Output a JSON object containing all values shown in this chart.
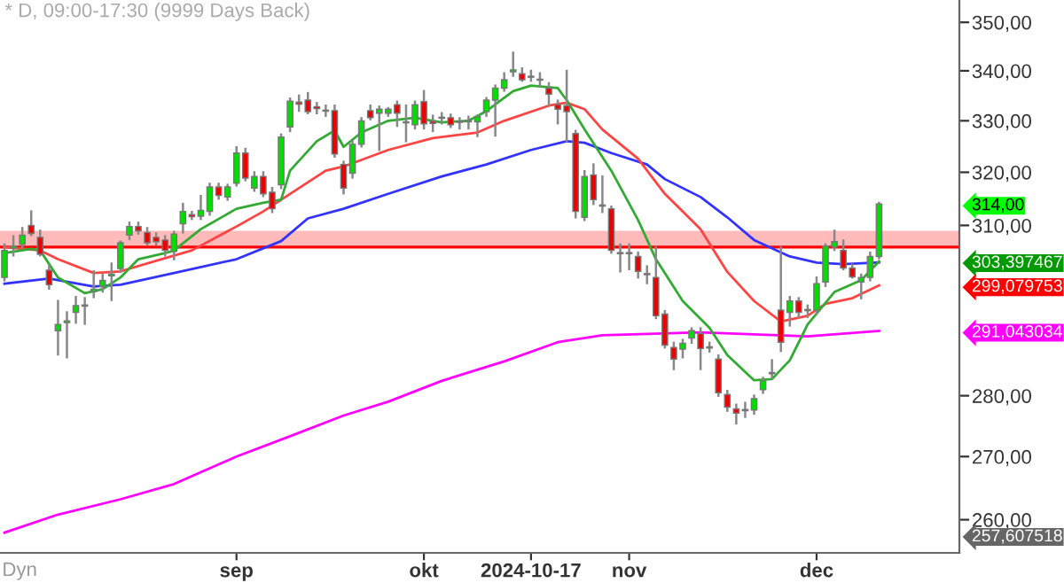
{
  "chart_data": {
    "type": "candlestick",
    "title": "* D, 09:00-17:30 (9999 Days Back)",
    "categories": [
      null,
      null,
      null,
      null,
      null,
      null,
      null,
      null,
      null,
      null,
      null,
      null,
      null,
      null,
      null,
      null,
      null,
      null,
      null,
      null,
      null,
      null,
      null,
      null,
      null,
      null,
      "sep",
      null,
      null,
      null,
      null,
      null,
      null,
      null,
      null,
      null,
      null,
      null,
      null,
      null,
      null,
      null,
      null,
      null,
      null,
      null,
      null,
      "okt",
      null,
      null,
      null,
      null,
      null,
      null,
      null,
      null,
      null,
      null,
      null,
      "2024-10-17",
      null,
      null,
      null,
      null,
      null,
      null,
      null,
      null,
      null,
      null,
      "nov",
      null,
      null,
      null,
      null,
      null,
      null,
      null,
      null,
      null,
      null,
      null,
      null,
      null,
      null,
      null,
      null,
      null,
      null,
      null,
      null,
      "dec",
      null,
      null,
      null,
      null,
      null,
      null,
      null
    ],
    "ohlc": [
      [
        300.5,
        306.5,
        300,
        305.4
      ],
      [
        305.8,
        308,
        304.5,
        306.2
      ],
      [
        306.5,
        309.5,
        306,
        308.2
      ],
      [
        310,
        312.6,
        308.2,
        308.5
      ],
      [
        307.8,
        309,
        304.5,
        304.7
      ],
      [
        301.8,
        302.5,
        298.5,
        299.2
      ],
      [
        291.1,
        296.3,
        287,
        292.2
      ],
      [
        292.5,
        294.3,
        286.5,
        292.8
      ],
      [
        294.3,
        297,
        292.5,
        295.5
      ],
      [
        295.4,
        296.8,
        292.3,
        295.6
      ],
      [
        298,
        301.6,
        297,
        298.4
      ],
      [
        298.9,
        301,
        298,
        300
      ],
      [
        300.8,
        303,
        296.5,
        301.1
      ],
      [
        302.1,
        307,
        301.5,
        306.8
      ],
      [
        308.2,
        310.5,
        307.5,
        309.8
      ],
      [
        309.8,
        310.5,
        308.5,
        309
      ],
      [
        308.7,
        309.5,
        306.5,
        306.8
      ],
      [
        307.8,
        308.5,
        306.5,
        307
      ],
      [
        307.3,
        308,
        304.5,
        305.4
      ],
      [
        305.2,
        308.8,
        303.8,
        308.4
      ],
      [
        310.3,
        314,
        308.7,
        312.6
      ],
      [
        312,
        312.5,
        311.2,
        311.6
      ],
      [
        311.7,
        315.5,
        311.2,
        312.8
      ],
      [
        312.6,
        317.8,
        312,
        317.2
      ],
      [
        317.2,
        317.8,
        315,
        315.6
      ],
      [
        315.3,
        317.6,
        314.8,
        317.2
      ],
      [
        317.9,
        324.8,
        317.5,
        323.7
      ],
      [
        323.7,
        324.5,
        318.5,
        318.9
      ],
      [
        317,
        320,
        316.5,
        319.2
      ],
      [
        319.2,
        320,
        315.5,
        315.9
      ],
      [
        316.2,
        317,
        312.5,
        313.1
      ],
      [
        317.6,
        327.3,
        317,
        326.8
      ],
      [
        328.8,
        334.4,
        328,
        333.9
      ],
      [
        333.7,
        335,
        332,
        333.3
      ],
      [
        334.1,
        335.5,
        331.5,
        331.8
      ],
      [
        332.8,
        333.5,
        331.5,
        332.4
      ],
      [
        332.1,
        333,
        331,
        331.9
      ],
      [
        332,
        333,
        323,
        323.5
      ],
      [
        321.5,
        322,
        316,
        317
      ],
      [
        319.8,
        326,
        319,
        325.4
      ],
      [
        325.4,
        330.5,
        325,
        330
      ],
      [
        332,
        333,
        330.3,
        330.6
      ],
      [
        331.5,
        332.8,
        324.3,
        332.3
      ],
      [
        331.5,
        332.5,
        331,
        332.3
      ],
      [
        333.2,
        333.8,
        329,
        331.5
      ],
      [
        329.8,
        333,
        326,
        329.6
      ],
      [
        329.2,
        333.8,
        328.5,
        333.2
      ],
      [
        333.8,
        335.9,
        328.5,
        329.4
      ],
      [
        329.9,
        331,
        328,
        329.5
      ],
      [
        330.5,
        331.5,
        329.5,
        330.7
      ],
      [
        330.6,
        331.2,
        328.8,
        329.2
      ],
      [
        329.9,
        330.5,
        328.5,
        329.7
      ],
      [
        329.8,
        330.8,
        328.5,
        330.1
      ],
      [
        329.8,
        331,
        327,
        330.8
      ],
      [
        331.8,
        334.5,
        331,
        334.1
      ],
      [
        334.1,
        337,
        327.1,
        336.5
      ],
      [
        336.5,
        339.5,
        336,
        338.2
      ],
      [
        339.8,
        343.7,
        339,
        340.2
      ],
      [
        339.4,
        340.5,
        338,
        338.2
      ],
      [
        338.9,
        340,
        338,
        338.7
      ],
      [
        338.3,
        339.5,
        337,
        338.1
      ],
      [
        336.5,
        337.5,
        333,
        335.3
      ],
      [
        333.2,
        334,
        329.5,
        332.3
      ],
      [
        333,
        340,
        326,
        331.8
      ],
      [
        327.5,
        328,
        311.5,
        312.6
      ],
      [
        311.5,
        320.2,
        311,
        319.2
      ],
      [
        319.5,
        321.5,
        314,
        314.8
      ],
      [
        313.6,
        319.2,
        312.5,
        313.8
      ],
      [
        313.1,
        313.5,
        305,
        305.4
      ],
      [
        304.8,
        306.5,
        301.6,
        305
      ],
      [
        304.8,
        306.5,
        302,
        305
      ],
      [
        304.3,
        305,
        300.5,
        301.6
      ],
      [
        301.2,
        302.5,
        299.5,
        301
      ],
      [
        300.5,
        306,
        293.3,
        293.7
      ],
      [
        294,
        294.5,
        288.2,
        288.6
      ],
      [
        288.2,
        289,
        284.5,
        286.2
      ],
      [
        287.9,
        289.5,
        286.5,
        288.9
      ],
      [
        289.8,
        291.5,
        289,
        291.1
      ],
      [
        290.6,
        291.5,
        284.5,
        288
      ],
      [
        288.3,
        289,
        287.5,
        288.1
      ],
      [
        286.2,
        286.8,
        280,
        280.5
      ],
      [
        280.2,
        280.8,
        277.5,
        278.1
      ],
      [
        277.8,
        278.5,
        275.4,
        277.1
      ],
      [
        277.5,
        278.8,
        276.5,
        277.7
      ],
      [
        277.6,
        280,
        277,
        279.5
      ],
      [
        281,
        283,
        280.5,
        282.5
      ],
      [
        283.7,
        286,
        283,
        283.9
      ],
      [
        294.7,
        306,
        287.6,
        289.1
      ],
      [
        294.3,
        297,
        292,
        296.3
      ],
      [
        296.3,
        296.8,
        293.5,
        294.3
      ],
      [
        294.6,
        295.5,
        293.5,
        294.8
      ],
      [
        294.7,
        300.5,
        294,
        299.4
      ],
      [
        299.7,
        306.5,
        299,
        306.2
      ],
      [
        306,
        309,
        305.5,
        307
      ],
      [
        305.4,
        307.2,
        302,
        302.2
      ],
      [
        302.2,
        302.8,
        300.5,
        300.6
      ],
      [
        299.7,
        301,
        296.8,
        300.5
      ],
      [
        300.5,
        305,
        300,
        304.3
      ],
      [
        304.3,
        314.2,
        304,
        314
      ]
    ],
    "series": [
      {
        "type": "line",
        "color": "#ff00ff",
        "values": [
          258.0,
          null,
          null,
          null,
          null,
          null,
          260.8,
          null,
          null,
          null,
          null,
          null,
          null,
          263.2,
          null,
          null,
          null,
          null,
          null,
          265.6,
          null,
          null,
          null,
          null,
          null,
          null,
          270.0,
          null,
          null,
          null,
          null,
          null,
          273.3,
          null,
          null,
          null,
          null,
          null,
          276.7,
          null,
          null,
          null,
          null,
          279.0,
          null,
          null,
          null,
          null,
          null,
          282.5,
          null,
          null,
          null,
          null,
          null,
          null,
          285.8,
          null,
          null,
          null,
          null,
          null,
          289.1,
          null,
          null,
          null,
          null,
          290.3,
          null,
          null,
          null,
          null,
          null,
          null,
          null,
          null,
          null,
          null,
          290.8,
          null,
          null,
          null,
          null,
          null,
          null,
          null,
          null,
          null,
          null,
          null,
          290.1,
          null,
          null,
          null,
          null,
          null,
          null,
          null,
          291.043034
        ]
      },
      {
        "type": "line",
        "color": "#3333ff",
        "values": [
          299.4,
          null,
          null,
          null,
          null,
          300.3,
          null,
          null,
          null,
          null,
          298.9,
          null,
          null,
          299.2,
          null,
          null,
          null,
          null,
          null,
          301.3,
          null,
          null,
          null,
          null,
          null,
          null,
          303.8,
          null,
          null,
          null,
          null,
          307.1,
          null,
          null,
          311.3,
          null,
          null,
          null,
          313.1,
          null,
          null,
          null,
          null,
          315.9,
          null,
          null,
          null,
          null,
          null,
          319.2,
          null,
          null,
          null,
          null,
          321.5,
          null,
          null,
          null,
          null,
          324.3,
          null,
          null,
          null,
          326.0,
          null,
          325.7,
          null,
          null,
          323.7,
          null,
          null,
          null,
          321.5,
          null,
          318.7,
          null,
          null,
          null,
          315.3,
          null,
          null,
          311.5,
          null,
          null,
          307.3,
          null,
          null,
          null,
          304.3,
          null,
          null,
          303.2,
          null,
          null,
          302.9,
          null,
          null,
          null,
          303.2
        ]
      },
      {
        "type": "line",
        "color": "#ff4444",
        "values": [
          306.0,
          null,
          null,
          null,
          305.4,
          null,
          303.8,
          null,
          null,
          null,
          301.3,
          null,
          null,
          301.6,
          null,
          null,
          null,
          null,
          304.0,
          null,
          null,
          305.4,
          null,
          null,
          null,
          null,
          309.8,
          null,
          null,
          312.6,
          null,
          null,
          315.9,
          null,
          null,
          null,
          320.3,
          null,
          321.1,
          null,
          null,
          null,
          null,
          324.3,
          null,
          null,
          null,
          null,
          326.6,
          null,
          null,
          null,
          null,
          327.7,
          null,
          null,
          330.0,
          null,
          null,
          null,
          null,
          333.0,
          null,
          333.6,
          null,
          332.3,
          null,
          328.3,
          null,
          null,
          null,
          322.6,
          null,
          null,
          315.9,
          null,
          null,
          null,
          309.3,
          null,
          null,
          301.5,
          null,
          null,
          296.3,
          null,
          null,
          292.7,
          null,
          null,
          293.7,
          null,
          295.8,
          null,
          null,
          296.8,
          null,
          null,
          299.079753
        ]
      },
      {
        "type": "line",
        "color": "#33aa33",
        "values": [
          304.9,
          null,
          null,
          305.7,
          305.4,
          null,
          300.5,
          null,
          null,
          297.7,
          null,
          298.4,
          null,
          300.5,
          null,
          303.8,
          null,
          null,
          304.9,
          305.4,
          null,
          null,
          309.3,
          null,
          null,
          null,
          313.1,
          null,
          null,
          314.2,
          null,
          314.8,
          320.3,
          null,
          null,
          326.0,
          null,
          328.1,
          324.9,
          null,
          327.7,
          null,
          null,
          330.0,
          null,
          null,
          330.6,
          null,
          null,
          329.7,
          null,
          null,
          330.0,
          null,
          331.9,
          null,
          null,
          335.9,
          null,
          337.0,
          null,
          null,
          336.5,
          334.1,
          null,
          328.3,
          null,
          null,
          320.3,
          null,
          null,
          311.0,
          null,
          303.8,
          null,
          null,
          296.3,
          null,
          null,
          291.6,
          null,
          286.9,
          null,
          null,
          282.6,
          null,
          282.8,
          null,
          286.0,
          null,
          292.2,
          null,
          null,
          297.9,
          null,
          null,
          300.0,
          null,
          303.397467
        ]
      }
    ],
    "log": "y",
    "ylim": [
      254.9,
      354.7
    ],
    "yticks": [
      {
        "value": 260,
        "label": "260,00"
      },
      {
        "value": 270,
        "label": "270,00"
      },
      {
        "value": 280,
        "label": "280,00"
      },
      {
        "value": 310,
        "label": "310,00"
      },
      {
        "value": 320,
        "label": "320,00"
      },
      {
        "value": 330,
        "label": "330,00"
      },
      {
        "value": 340,
        "label": "340,00"
      },
      {
        "value": 350,
        "label": "350,00"
      },
      {
        "value": 314,
        "label": "314,00"
      },
      {
        "value": 303.397467,
        "label": "303,397467"
      },
      {
        "value": 299.079753,
        "label": "299,079753"
      },
      {
        "value": 291.043034,
        "label": "291,043034"
      },
      {
        "value": 257.607518,
        "label": "257,607518"
      }
    ],
    "bands": [
      {
        "axis": "y",
        "from": 306,
        "to": 309,
        "color": "#ffb3b3"
      }
    ],
    "ref_lines": [
      {
        "axis": "y",
        "value": 306,
        "color": "#ff0000"
      }
    ],
    "annotations": [
      "Dyn"
    ],
    "grid": false,
    "legend": false
  }
}
